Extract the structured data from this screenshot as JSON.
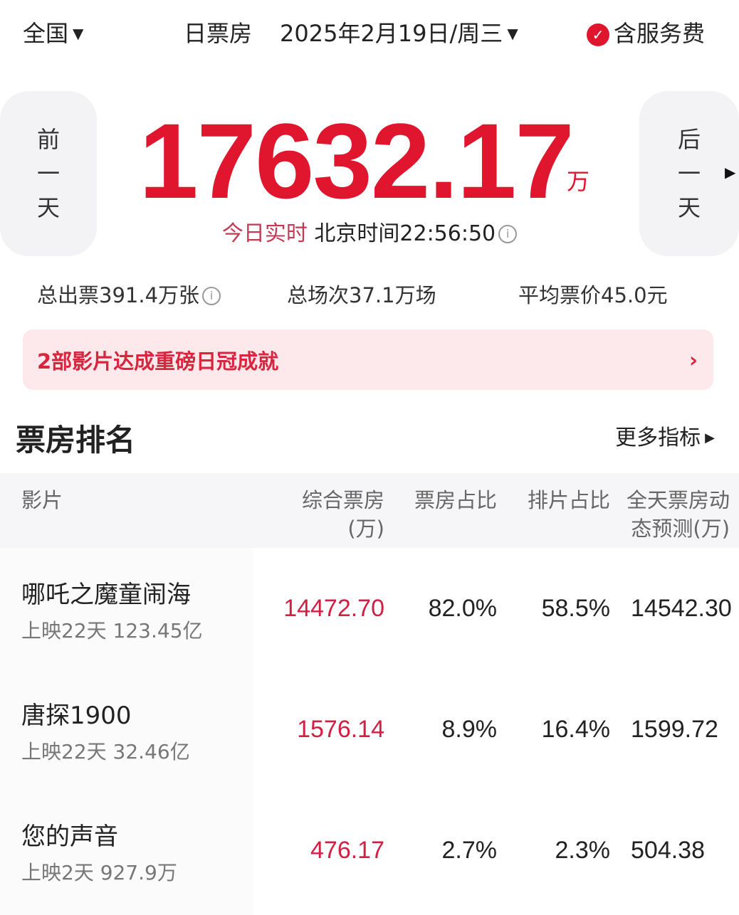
{
  "header": {
    "region": "全国",
    "mode": "日票房",
    "date": "2025年2月19日/周三",
    "service_fee": "含服务费"
  },
  "nav": {
    "prev_day": [
      "前",
      "一",
      "天"
    ],
    "next_day": [
      "后",
      "一",
      "天"
    ]
  },
  "total": {
    "value": "17632.17",
    "unit": "万",
    "realtime_label": "今日实时",
    "time_label": "北京时间22:56:50"
  },
  "stats": {
    "tickets": "总出票391.4万张",
    "shows": "总场次37.1万场",
    "avg_price": "平均票价45.0元"
  },
  "banner": {
    "text": "2部影片达成重磅日冠成就",
    "chevron": "›"
  },
  "ranking": {
    "title": "票房排名",
    "more": "更多指标",
    "headers": {
      "film": "影片",
      "box_office_1": "综合票房",
      "box_office_2": "(万)",
      "share": "票房占比",
      "schedule": "排片占比",
      "forecast_1": "全天票房动",
      "forecast_2": "态预测(万)"
    },
    "rows": [
      {
        "name": "哪吒之魔童闹海",
        "sub": "上映22天  123.45亿",
        "box_office": "14472.70",
        "share": "82.0%",
        "schedule": "58.5%",
        "forecast": "14542.30"
      },
      {
        "name": "唐探1900",
        "sub": "上映22天  32.46亿",
        "box_office": "1576.14",
        "share": "8.9%",
        "schedule": "16.4%",
        "forecast": "1599.72"
      },
      {
        "name": "您的声音",
        "sub": "上映2天  927.9万",
        "box_office": "476.17",
        "share": "2.7%",
        "schedule": "2.3%",
        "forecast": "504.38"
      }
    ]
  },
  "colors": {
    "accent": "#e0162e",
    "banner_bg": "#fde9ec"
  }
}
